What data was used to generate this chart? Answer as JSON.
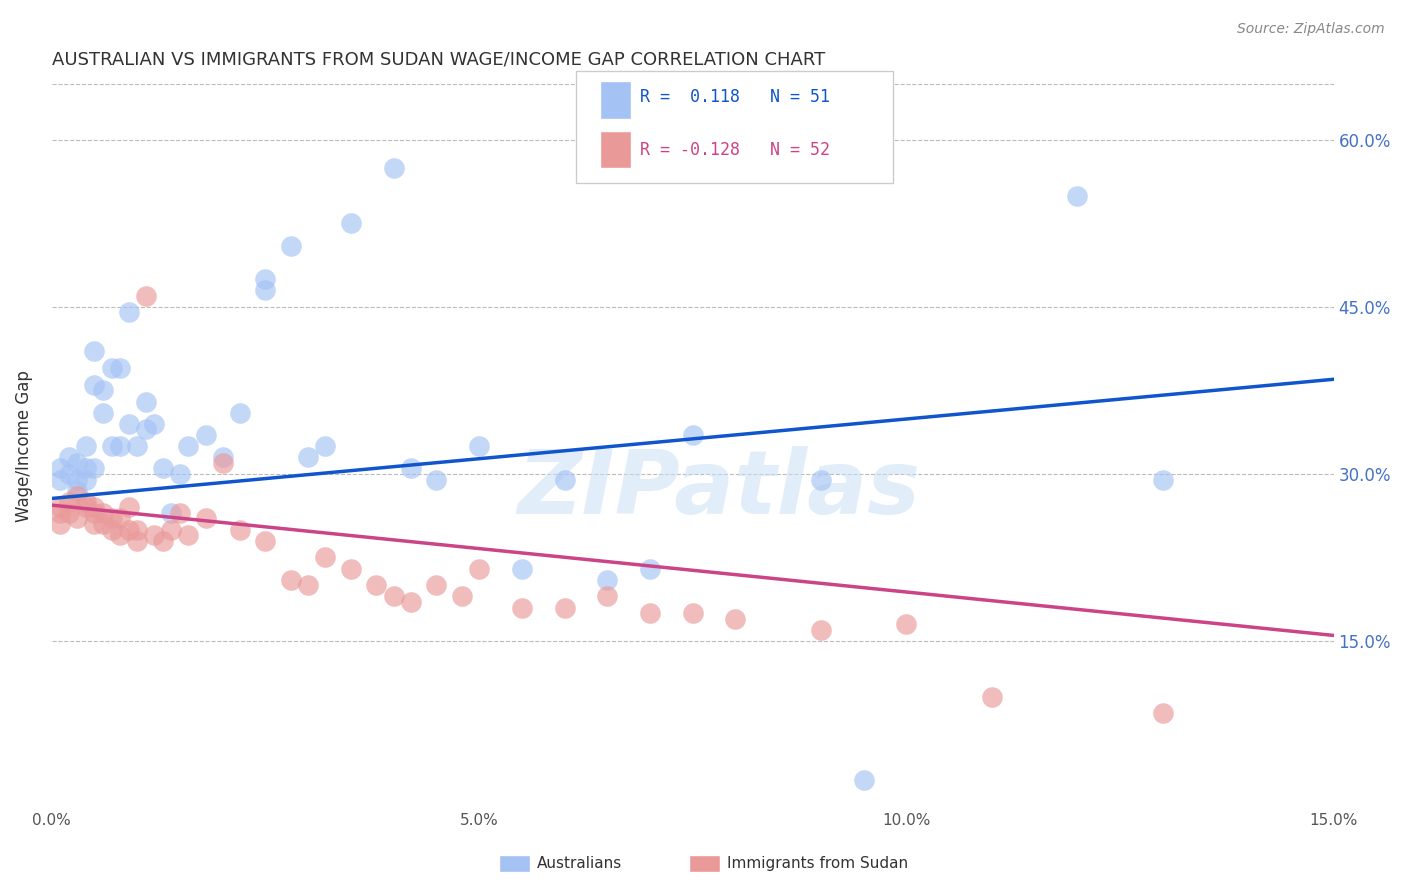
{
  "title": "AUSTRALIAN VS IMMIGRANTS FROM SUDAN WAGE/INCOME GAP CORRELATION CHART",
  "source": "Source: ZipAtlas.com",
  "ylabel": "Wage/Income Gap",
  "y_ticks": [
    "15.0%",
    "30.0%",
    "45.0%",
    "60.0%"
  ],
  "y_tick_vals": [
    0.15,
    0.3,
    0.45,
    0.6
  ],
  "x_range": [
    0.0,
    0.15
  ],
  "y_range": [
    0.0,
    0.65
  ],
  "legend_r_blue": "R =  0.118",
  "legend_n_blue": "N = 51",
  "legend_r_pink": "R = -0.128",
  "legend_n_pink": "N = 52",
  "blue_color": "#a4c2f4",
  "pink_color": "#ea9999",
  "line_blue": "#1155cc",
  "line_pink": "#cc4488",
  "watermark": "ZIPatlas",
  "blue_x": [
    0.001,
    0.001,
    0.002,
    0.002,
    0.003,
    0.003,
    0.003,
    0.004,
    0.004,
    0.004,
    0.005,
    0.005,
    0.005,
    0.006,
    0.006,
    0.007,
    0.007,
    0.008,
    0.008,
    0.009,
    0.009,
    0.01,
    0.011,
    0.011,
    0.012,
    0.013,
    0.014,
    0.015,
    0.016,
    0.018,
    0.02,
    0.022,
    0.025,
    0.025,
    0.028,
    0.03,
    0.032,
    0.035,
    0.04,
    0.042,
    0.045,
    0.05,
    0.055,
    0.06,
    0.065,
    0.07,
    0.075,
    0.09,
    0.095,
    0.12,
    0.13
  ],
  "blue_y": [
    0.305,
    0.295,
    0.315,
    0.3,
    0.285,
    0.31,
    0.295,
    0.295,
    0.305,
    0.325,
    0.38,
    0.41,
    0.305,
    0.355,
    0.375,
    0.395,
    0.325,
    0.395,
    0.325,
    0.345,
    0.445,
    0.325,
    0.34,
    0.365,
    0.345,
    0.305,
    0.265,
    0.3,
    0.325,
    0.335,
    0.315,
    0.355,
    0.475,
    0.465,
    0.505,
    0.315,
    0.325,
    0.525,
    0.575,
    0.305,
    0.295,
    0.325,
    0.215,
    0.295,
    0.205,
    0.215,
    0.335,
    0.295,
    0.025,
    0.55,
    0.295
  ],
  "pink_x": [
    0.001,
    0.001,
    0.001,
    0.002,
    0.002,
    0.003,
    0.003,
    0.004,
    0.004,
    0.005,
    0.005,
    0.005,
    0.006,
    0.006,
    0.007,
    0.007,
    0.008,
    0.008,
    0.009,
    0.009,
    0.01,
    0.01,
    0.011,
    0.012,
    0.013,
    0.014,
    0.015,
    0.016,
    0.018,
    0.02,
    0.022,
    0.025,
    0.028,
    0.03,
    0.032,
    0.035,
    0.038,
    0.04,
    0.042,
    0.045,
    0.048,
    0.05,
    0.055,
    0.06,
    0.065,
    0.07,
    0.075,
    0.08,
    0.09,
    0.1,
    0.11,
    0.13
  ],
  "pink_y": [
    0.27,
    0.265,
    0.255,
    0.275,
    0.265,
    0.26,
    0.28,
    0.27,
    0.275,
    0.255,
    0.27,
    0.265,
    0.265,
    0.255,
    0.25,
    0.26,
    0.245,
    0.26,
    0.25,
    0.27,
    0.24,
    0.25,
    0.46,
    0.245,
    0.24,
    0.25,
    0.265,
    0.245,
    0.26,
    0.31,
    0.25,
    0.24,
    0.205,
    0.2,
    0.225,
    0.215,
    0.2,
    0.19,
    0.185,
    0.2,
    0.19,
    0.215,
    0.18,
    0.18,
    0.19,
    0.175,
    0.175,
    0.17,
    0.16,
    0.165,
    0.1,
    0.085
  ],
  "blue_line_x": [
    0.0,
    0.15
  ],
  "blue_line_y": [
    0.278,
    0.385
  ],
  "pink_line_x": [
    0.0,
    0.15
  ],
  "pink_line_y": [
    0.272,
    0.155
  ]
}
